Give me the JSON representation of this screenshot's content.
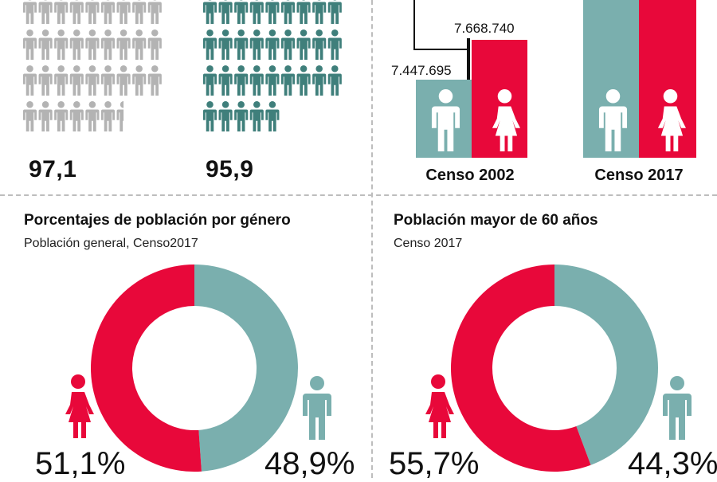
{
  "colors": {
    "female": "#e8083a",
    "male": "#7aafae",
    "male_dark": "#3f7f7b",
    "gray": "#b3b3b3",
    "text": "#111111"
  },
  "icons": {
    "gray_grid": "person-icon",
    "teal_grid": "person-icon",
    "bar_male": "male-icon",
    "bar_female": "female-icon",
    "donut_male": "male-icon",
    "donut_female": "female-icon"
  },
  "pictograms": {
    "left_value": "97,1",
    "right_value": "95,9",
    "left_rows": [
      9,
      9,
      9,
      6.5
    ],
    "right_rows": [
      9,
      9,
      9,
      5
    ]
  },
  "chart_data": [
    {
      "type": "bar",
      "categories": [
        "Censo 2002",
        "Censo 2017"
      ],
      "series": [
        {
          "name": "",
          "values": [
            7447695,
            null
          ]
        },
        {
          "name": "",
          "values": [
            7668740,
            null
          ]
        }
      ],
      "labels": [
        "7.447.695",
        "7.668.740"
      ]
    },
    {
      "type": "pie",
      "title": "Porcentajes de población por género",
      "subtitle": "Población general, Censo2017",
      "slices": [
        {
          "name": "",
          "value": 51.1,
          "label": "51,1%",
          "color": "#e8083a"
        },
        {
          "name": "",
          "value": 48.9,
          "label": "48,9%",
          "color": "#7aafae"
        }
      ]
    },
    {
      "type": "pie",
      "title": "Población mayor de 60 años",
      "subtitle": "Censo 2017",
      "slices": [
        {
          "name": "",
          "value": 55.7,
          "label": "55,7%",
          "color": "#e8083a"
        },
        {
          "name": "",
          "value": 44.3,
          "label": "44,3%",
          "color": "#7aafae"
        }
      ]
    }
  ]
}
